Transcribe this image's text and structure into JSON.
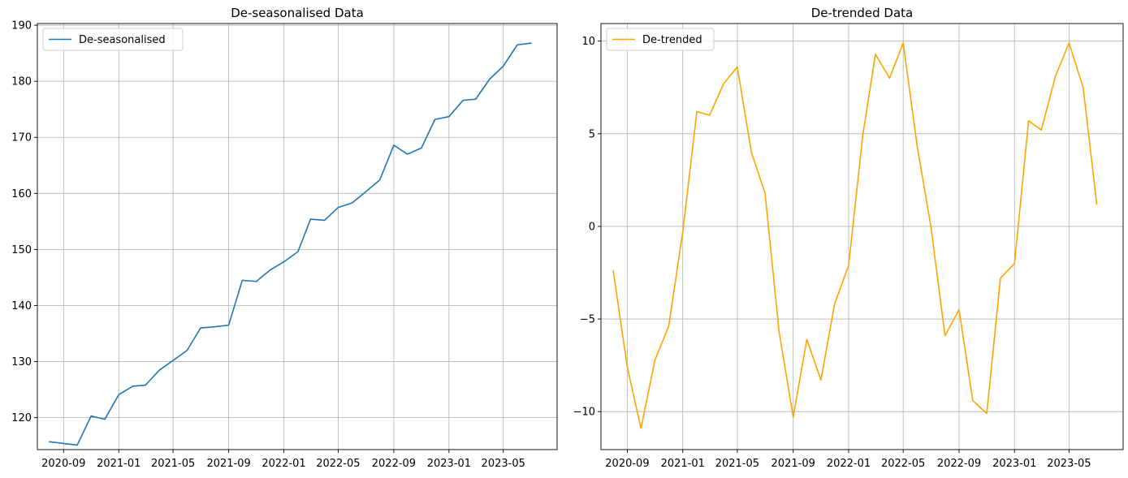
{
  "chart_data": [
    {
      "type": "line",
      "title": "De-seasonalised Data",
      "xlabel": "",
      "ylabel": "",
      "x_tick_labels": [
        "2020-09",
        "2021-01",
        "2021-05",
        "2021-09",
        "2022-01",
        "2022-05",
        "2022-09",
        "2023-01",
        "2023-05"
      ],
      "y_tick_labels": [
        "120",
        "130",
        "140",
        "150",
        "160",
        "170",
        "180",
        "190"
      ],
      "ylim": [
        114.3,
        190.3
      ],
      "xlim": [
        "2020-07-05",
        "2023-08-28"
      ],
      "grid": true,
      "legend_position": "upper left",
      "x": [
        "2020-08-01",
        "2020-09-01",
        "2020-10-01",
        "2020-11-01",
        "2020-12-01",
        "2021-01-01",
        "2021-02-01",
        "2021-03-01",
        "2021-04-01",
        "2021-05-01",
        "2021-06-01",
        "2021-07-01",
        "2021-08-01",
        "2021-09-01",
        "2021-10-01",
        "2021-11-01",
        "2021-12-01",
        "2022-01-01",
        "2022-02-01",
        "2022-03-01",
        "2022-04-01",
        "2022-05-01",
        "2022-06-01",
        "2022-07-01",
        "2022-08-01",
        "2022-09-01",
        "2022-10-01",
        "2022-11-01",
        "2022-12-01",
        "2023-01-01",
        "2023-02-01",
        "2023-03-01",
        "2023-04-01",
        "2023-05-01",
        "2023-06-01",
        "2023-07-01"
      ],
      "series": [
        {
          "name": "De-seasonalised",
          "color": "#1f77b4",
          "values": [
            115.7,
            115.4,
            115.1,
            120.3,
            119.7,
            124.1,
            125.6,
            125.8,
            128.5,
            130.2,
            132.0,
            136.0,
            136.2,
            136.5,
            144.5,
            144.3,
            146.3,
            147.8,
            149.6,
            155.4,
            155.2,
            157.5,
            158.3,
            160.3,
            162.4,
            168.6,
            167.0,
            168.1,
            173.2,
            173.7,
            176.6,
            176.8,
            180.4,
            182.7,
            186.5,
            186.8
          ]
        }
      ]
    },
    {
      "type": "line",
      "title": "De-trended Data",
      "xlabel": "",
      "ylabel": "",
      "x_tick_labels": [
        "2020-09",
        "2021-01",
        "2021-05",
        "2021-09",
        "2022-01",
        "2022-05",
        "2022-09",
        "2023-01",
        "2023-05"
      ],
      "y_tick_labels": [
        "10",
        "5",
        "0",
        "−5",
        "−10"
      ],
      "ylim": [
        -12.05,
        10.95
      ],
      "xlim": [
        "2020-07-05",
        "2023-08-28"
      ],
      "grid": true,
      "legend_position": "upper left",
      "x": [
        "2020-08-01",
        "2020-09-01",
        "2020-10-01",
        "2020-11-01",
        "2020-12-01",
        "2021-01-01",
        "2021-02-01",
        "2021-03-01",
        "2021-04-01",
        "2021-05-01",
        "2021-06-01",
        "2021-07-01",
        "2021-08-01",
        "2021-09-01",
        "2021-10-01",
        "2021-11-01",
        "2021-12-01",
        "2022-01-01",
        "2022-02-01",
        "2022-03-01",
        "2022-04-01",
        "2022-05-01",
        "2022-06-01",
        "2022-07-01",
        "2022-08-01",
        "2022-09-01",
        "2022-10-01",
        "2022-11-01",
        "2022-12-01",
        "2023-01-01",
        "2023-02-01",
        "2023-03-01",
        "2023-04-01",
        "2023-05-01",
        "2023-06-01",
        "2023-07-01"
      ],
      "series": [
        {
          "name": "De-trended",
          "color": "#ffa500",
          "values": [
            -2.4,
            -7.6,
            -10.9,
            -7.2,
            -5.4,
            -0.3,
            6.2,
            6.0,
            7.7,
            8.6,
            4.0,
            1.8,
            -5.7,
            -10.3,
            -6.1,
            -8.3,
            -4.2,
            -2.1,
            4.9,
            9.3,
            8.0,
            9.9,
            4.3,
            0.0,
            -5.9,
            -4.5,
            -9.4,
            -10.1,
            -2.8,
            -2.0,
            5.7,
            5.2,
            8.1,
            9.9,
            7.5,
            1.2
          ]
        }
      ]
    }
  ]
}
